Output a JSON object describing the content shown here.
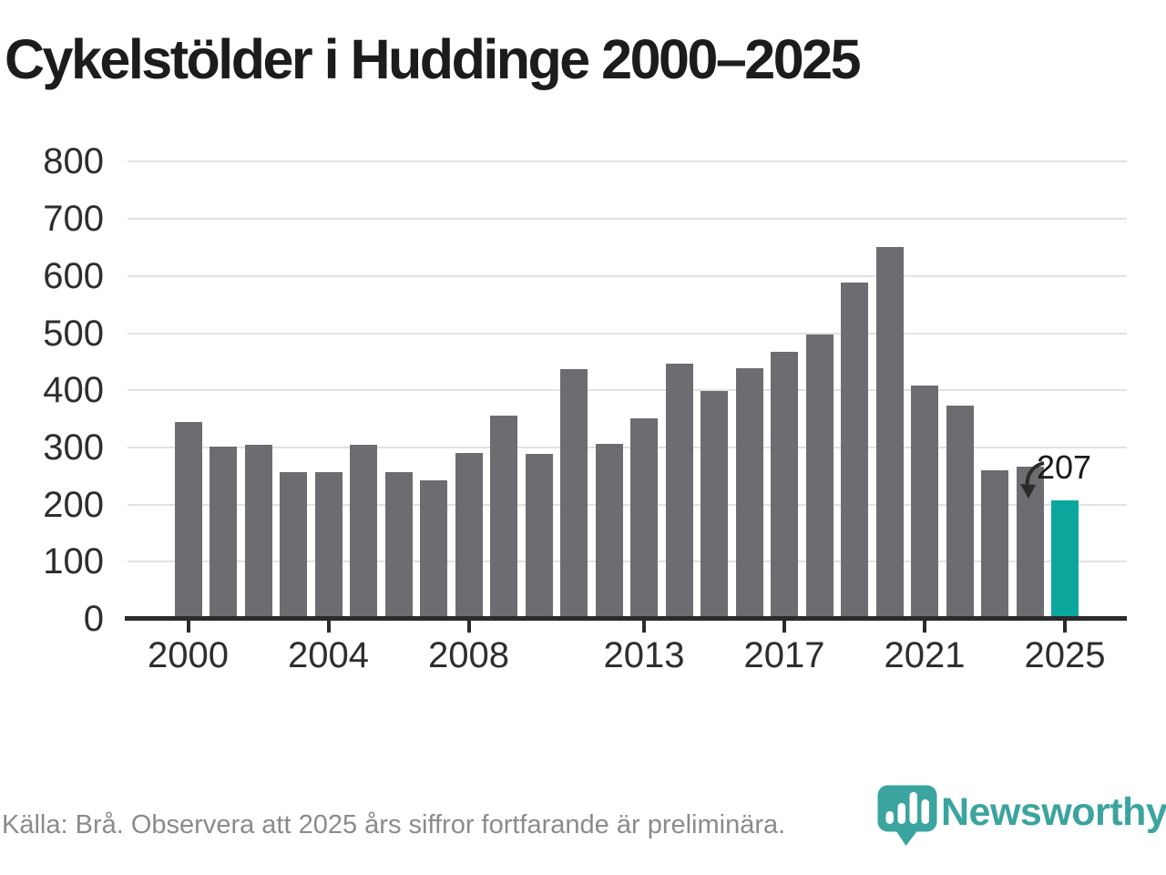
{
  "title": "Cykelstölder i Huddinge 2000–2025",
  "source_note": "Källa: Brå. Observera att 2025 års siffror fortfarande är preliminära.",
  "branding": {
    "wordmark": "Newsworthy",
    "icon": "newsworthy-pin-barchart-icon",
    "color": "#3ba49e"
  },
  "chart_data": {
    "type": "bar",
    "title": "Cykelstölder i Huddinge 2000–2025",
    "categories": [
      2000,
      2001,
      2002,
      2003,
      2004,
      2005,
      2006,
      2007,
      2008,
      2009,
      2010,
      2011,
      2012,
      2013,
      2014,
      2015,
      2016,
      2017,
      2018,
      2019,
      2020,
      2021,
      2022,
      2023,
      2024,
      2025
    ],
    "values": [
      345,
      302,
      304,
      257,
      257,
      305,
      257,
      242,
      290,
      355,
      288,
      437,
      306,
      351,
      446,
      398,
      438,
      467,
      497,
      588,
      651,
      408,
      373,
      260,
      266,
      207
    ],
    "bar_color": "#6c6c71",
    "highlight": {
      "category": 2025,
      "value": 207,
      "label": "207",
      "color": "#0ba79c"
    },
    "xlabel": "",
    "ylabel": "",
    "ylim": [
      0,
      800
    ],
    "y_ticks": [
      0,
      100,
      200,
      300,
      400,
      500,
      600,
      700,
      800
    ],
    "x_tick_labels": [
      2000,
      2004,
      2008,
      2013,
      2017,
      2021,
      2025
    ],
    "grid": "horizontal",
    "legend": "none"
  }
}
